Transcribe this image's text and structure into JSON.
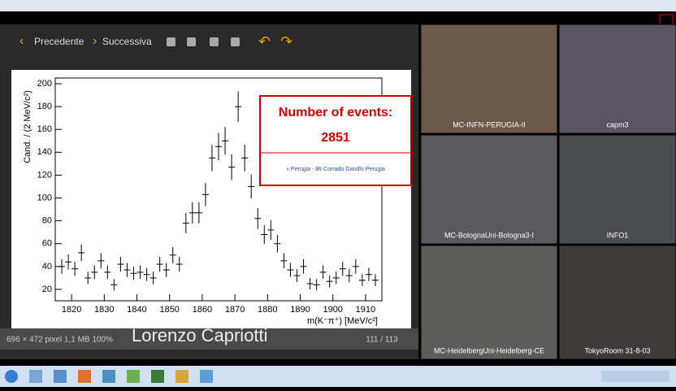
{
  "toolbar": {
    "prev": "Precedente",
    "next": "Successiva"
  },
  "overlay": {
    "heading": "Number of events:",
    "count": "2851",
    "source": "» Perugia - 86 Corrado Gandhi Perugia"
  },
  "status": {
    "info": "696 × 472 pixel 1,1 MB 100%",
    "speaker": "Lorenzo Capriotti",
    "page": "111 / 113"
  },
  "videos": [
    "MC-INFN-PERUGIA-II",
    "capm3",
    "MC-BolognaUni-Bologna3-I",
    "INFO1",
    "MC-HeidelbergUni-Heidelberg-CE",
    "TokyoRoom 31-8-03"
  ],
  "chart_data": {
    "type": "errorbar",
    "x_label": "m(K⁻π⁺) [MeV/c²]",
    "y_label": "Cand. / (2 MeV/c²)",
    "x": [
      1817,
      1819,
      1821,
      1823,
      1825,
      1827,
      1829,
      1831,
      1833,
      1835,
      1837,
      1839,
      1841,
      1843,
      1845,
      1847,
      1849,
      1851,
      1853,
      1855,
      1857,
      1859,
      1861,
      1863,
      1865,
      1867,
      1869,
      1871,
      1873,
      1875,
      1877,
      1879,
      1881,
      1883,
      1885,
      1887,
      1889,
      1891,
      1893,
      1895,
      1897,
      1899,
      1901,
      1903,
      1905,
      1907,
      1909,
      1911,
      1913
    ],
    "values": [
      40,
      44,
      38,
      52,
      30,
      35,
      45,
      35,
      24,
      42,
      37,
      34,
      35,
      33,
      30,
      42,
      37,
      50,
      42,
      78,
      87,
      87,
      103,
      135,
      145,
      150,
      127,
      180,
      135,
      110,
      82,
      68,
      72,
      60,
      45,
      37,
      32,
      40,
      25,
      24,
      35,
      27,
      30,
      38,
      32,
      40,
      28,
      33,
      28
    ],
    "errors": [
      6.3,
      6.6,
      6.2,
      7.2,
      5.5,
      5.9,
      6.7,
      5.9,
      4.9,
      6.5,
      6.1,
      5.8,
      5.9,
      5.7,
      5.5,
      6.5,
      6.1,
      7.1,
      6.5,
      8.8,
      9.3,
      9.3,
      10.1,
      11.6,
      12.0,
      12.2,
      11.3,
      13.4,
      11.6,
      10.5,
      9.1,
      8.2,
      8.5,
      7.7,
      6.7,
      6.1,
      5.7,
      6.3,
      5.0,
      4.9,
      5.9,
      5.2,
      5.5,
      6.2,
      5.7,
      6.3,
      5.3,
      5.7,
      5.3
    ],
    "color": "#000000",
    "xlim": [
      1815,
      1915
    ],
    "ylim": [
      10,
      205
    ],
    "xticks": [
      1820,
      1830,
      1840,
      1850,
      1860,
      1870,
      1880,
      1890,
      1900,
      1910
    ],
    "yticks": [
      20,
      40,
      60,
      80,
      100,
      120,
      140,
      160,
      180,
      200
    ]
  }
}
